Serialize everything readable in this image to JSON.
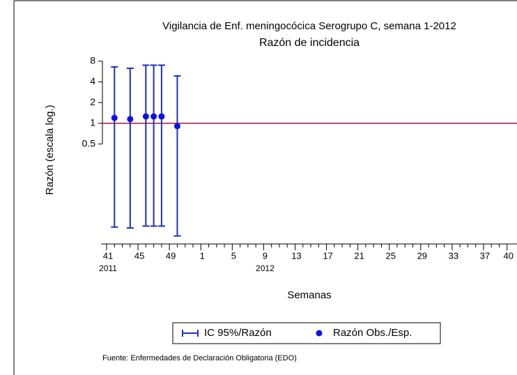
{
  "chart_data": {
    "type": "errorbar",
    "title": "Vigilancia de Enf. meningocócica Serogrupo C, semana 1-2012",
    "title_color": "#2b4ea0",
    "subtitle": "Razón de incidencia",
    "y_label": "Razón (escala log.)",
    "x_label": "Semanas",
    "source": "Fuente: Enfermedades de Declaración Obligatoria (EDO)",
    "years": [
      "2011",
      "2012"
    ],
    "categories": [
      41,
      null,
      null,
      null,
      45,
      null,
      null,
      null,
      49,
      null,
      null,
      null,
      1,
      null,
      null,
      null,
      5,
      null,
      null,
      null,
      9,
      null,
      null,
      null,
      13,
      null,
      null,
      null,
      17,
      null,
      null,
      null,
      21,
      null,
      null,
      null,
      25,
      null,
      null,
      null,
      29,
      null,
      null,
      null,
      33,
      null,
      null,
      null,
      37,
      null,
      null,
      40
    ],
    "ylim": [
      0.0176,
      9.6
    ],
    "yticks": [
      8,
      4,
      2,
      1,
      0.5
    ],
    "log_y": true,
    "reference_line": {
      "value": 1,
      "color": "#a0173e"
    },
    "legend": "bottom",
    "series": [
      {
        "name": "IC 95%/Razón",
        "color": "#1f2fbf",
        "lower": [
          null,
          0.031,
          null,
          0.03,
          null,
          0.032,
          0.032,
          0.032,
          null,
          0.023,
          null,
          null,
          null,
          null,
          null,
          null,
          null,
          null,
          null,
          null,
          null,
          null,
          null,
          null,
          null,
          null,
          null,
          null,
          null,
          null,
          null,
          null,
          null,
          null,
          null,
          null,
          null,
          null,
          null,
          null,
          null,
          null,
          null,
          null,
          null,
          null,
          null,
          null,
          null,
          null,
          null,
          null
        ],
        "upper": [
          null,
          6.6,
          null,
          6.3,
          null,
          7,
          7,
          7,
          null,
          4.9,
          null,
          null,
          null,
          null,
          null,
          null,
          null,
          null,
          null,
          null,
          null,
          null,
          null,
          null,
          null,
          null,
          null,
          null,
          null,
          null,
          null,
          null,
          null,
          null,
          null,
          null,
          null,
          null,
          null,
          null,
          null,
          null,
          null,
          null,
          null,
          null,
          null,
          null,
          null,
          null,
          null,
          null
        ]
      },
      {
        "name": "Razón Obs./Esp.",
        "color": "#1010e8",
        "values": [
          null,
          1.2,
          null,
          1.15,
          null,
          1.26,
          1.26,
          1.26,
          null,
          0.91,
          null,
          null,
          null,
          null,
          null,
          null,
          null,
          null,
          null,
          null,
          null,
          null,
          null,
          null,
          null,
          null,
          null,
          null,
          null,
          null,
          null,
          null,
          null,
          null,
          null,
          null,
          null,
          null,
          null,
          null,
          null,
          null,
          null,
          null,
          null,
          null,
          null,
          null,
          null,
          null,
          null,
          null
        ]
      }
    ]
  }
}
